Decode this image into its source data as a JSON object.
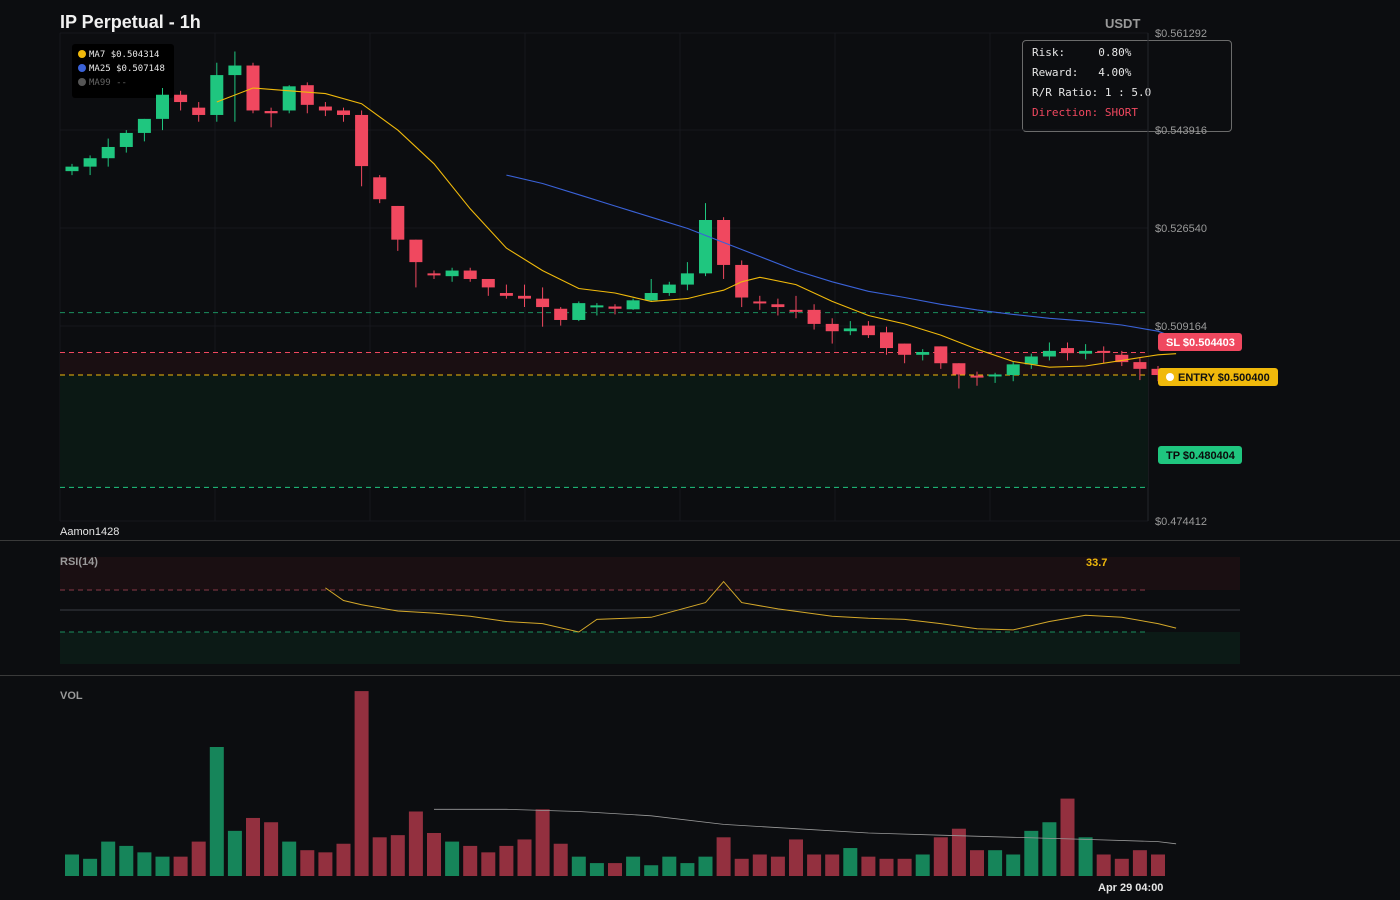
{
  "header": {
    "title": "IP Perpetual - 1h",
    "currency": "USDT"
  },
  "legend": [
    {
      "name": "MA7",
      "value": "$0.504314",
      "color": "#f0b90b"
    },
    {
      "name": "MA25",
      "value": "$0.507148",
      "color": "#3a62d8"
    },
    {
      "name": "MA99",
      "value": "--",
      "color": "#555555"
    }
  ],
  "trade_info": {
    "risk_label": "Risk:",
    "risk_value": "0.80%",
    "reward_label": "Reward:",
    "reward_value": "4.00%",
    "ratio_label": "R/R Ratio:",
    "ratio_value": "1 : 5.0",
    "direction_label": "Direction:",
    "direction_value": "SHORT"
  },
  "watermark": "Aamon1428",
  "rsi": {
    "label": "RSI(14)",
    "value": "33.7"
  },
  "volume": {
    "label": "VOL"
  },
  "footer": {
    "date": "Apr 29 04:00"
  },
  "colors": {
    "up": "#1fc67f",
    "down": "#f0485f",
    "ma7": "#f0b90b",
    "ma25": "#3a62d8",
    "entry": "#f0b90b",
    "sl": "#f0485f",
    "tp": "#1fc67f"
  },
  "chart_data": {
    "type": "candlestick",
    "title": "IP Perpetual - 1h",
    "y_axis_labels": [
      "$0.561292",
      "$0.543916",
      "$0.526540",
      "$0.509164",
      "$0.474412"
    ],
    "ylim": [
      0.474412,
      0.561292
    ],
    "levels": [
      {
        "label": "SL $0.504403",
        "value": 0.504403,
        "color": "#f0485f"
      },
      {
        "label": "ENTRY $0.500400",
        "value": 0.5004,
        "color": "#f0b90b"
      },
      {
        "label": "TP $0.480404",
        "value": 0.480404,
        "color": "#1fc67f"
      }
    ],
    "extra_dashed_level": 0.5115,
    "candles": [
      [
        0.5367,
        0.5375,
        0.536,
        0.538
      ],
      [
        0.5375,
        0.539,
        0.536,
        0.5395
      ],
      [
        0.539,
        0.541,
        0.5375,
        0.5425
      ],
      [
        0.541,
        0.5435,
        0.54,
        0.544
      ],
      [
        0.5435,
        0.546,
        0.542,
        0.546
      ],
      [
        0.546,
        0.5503,
        0.544,
        0.5515
      ],
      [
        0.5503,
        0.549,
        0.5475,
        0.551
      ],
      [
        0.548,
        0.5467,
        0.5455,
        0.549
      ],
      [
        0.5467,
        0.5538,
        0.5455,
        0.556
      ],
      [
        0.5538,
        0.5555,
        0.5455,
        0.558
      ],
      [
        0.5555,
        0.5475,
        0.547,
        0.556
      ],
      [
        0.5474,
        0.547,
        0.5445,
        0.548
      ],
      [
        0.5475,
        0.5518,
        0.547,
        0.552
      ],
      [
        0.552,
        0.5485,
        0.547,
        0.5525
      ],
      [
        0.5482,
        0.5475,
        0.5465,
        0.549
      ],
      [
        0.5475,
        0.5467,
        0.5455,
        0.548
      ],
      [
        0.5467,
        0.5376,
        0.534,
        0.5475
      ],
      [
        0.5356,
        0.5317,
        0.531,
        0.536
      ],
      [
        0.5305,
        0.5245,
        0.5225,
        0.5305
      ],
      [
        0.5245,
        0.5205,
        0.516,
        0.5245
      ],
      [
        0.5185,
        0.5182,
        0.5175,
        0.519
      ],
      [
        0.518,
        0.519,
        0.517,
        0.5195
      ],
      [
        0.519,
        0.5175,
        0.517,
        0.5195
      ],
      [
        0.5175,
        0.516,
        0.5145,
        0.5175
      ],
      [
        0.515,
        0.5145,
        0.514,
        0.5165
      ],
      [
        0.5145,
        0.514,
        0.5125,
        0.5165
      ],
      [
        0.514,
        0.5125,
        0.509,
        0.516
      ],
      [
        0.5122,
        0.5102,
        0.5092,
        0.5125
      ],
      [
        0.5102,
        0.5132,
        0.51,
        0.5135
      ],
      [
        0.5125,
        0.5128,
        0.511,
        0.5132
      ],
      [
        0.5126,
        0.5122,
        0.5112,
        0.513
      ],
      [
        0.5121,
        0.5137,
        0.512,
        0.514
      ],
      [
        0.5137,
        0.515,
        0.5136,
        0.5175
      ],
      [
        0.515,
        0.5165,
        0.5145,
        0.517
      ],
      [
        0.5165,
        0.5185,
        0.5155,
        0.5205
      ],
      [
        0.5185,
        0.528,
        0.518,
        0.531
      ],
      [
        0.528,
        0.52,
        0.5175,
        0.5285
      ],
      [
        0.52,
        0.5142,
        0.5125,
        0.5208
      ],
      [
        0.5135,
        0.5132,
        0.512,
        0.5145
      ],
      [
        0.513,
        0.5125,
        0.511,
        0.514
      ],
      [
        0.512,
        0.5118,
        0.5105,
        0.5145
      ],
      [
        0.512,
        0.5095,
        0.5085,
        0.513
      ],
      [
        0.5095,
        0.5082,
        0.506,
        0.5105
      ],
      [
        0.5082,
        0.5087,
        0.5075,
        0.51
      ],
      [
        0.5092,
        0.5075,
        0.507,
        0.51
      ],
      [
        0.508,
        0.5052,
        0.504,
        0.509
      ],
      [
        0.506,
        0.504,
        0.5025,
        0.506
      ],
      [
        0.504,
        0.5045,
        0.503,
        0.505
      ],
      [
        0.5055,
        0.5025,
        0.5015,
        0.5055
      ],
      [
        0.5025,
        0.5005,
        0.498,
        0.5025
      ],
      [
        0.5003,
        0.5002,
        0.4985,
        0.501
      ],
      [
        0.5003,
        0.5005,
        0.499,
        0.5008
      ],
      [
        0.5004,
        0.5023,
        0.4993,
        0.5028
      ],
      [
        0.5023,
        0.5037,
        0.5015,
        0.5042
      ],
      [
        0.5037,
        0.5047,
        0.503,
        0.5062
      ],
      [
        0.5052,
        0.5043,
        0.503,
        0.5062
      ],
      [
        0.5042,
        0.5047,
        0.5032,
        0.5059
      ],
      [
        0.5047,
        0.5045,
        0.5025,
        0.5055
      ],
      [
        0.504,
        0.5027,
        0.502,
        0.5047
      ],
      [
        0.5027,
        0.5015,
        0.4995,
        0.5034
      ],
      [
        0.5015,
        0.5004,
        0.4993,
        0.502
      ]
    ],
    "ma7": [
      [
        8,
        0.549
      ],
      [
        10,
        0.5515
      ],
      [
        12,
        0.551
      ],
      [
        14,
        0.5505
      ],
      [
        16,
        0.5487
      ],
      [
        18,
        0.544
      ],
      [
        20,
        0.538
      ],
      [
        22,
        0.53
      ],
      [
        24,
        0.523
      ],
      [
        26,
        0.519
      ],
      [
        28,
        0.5158
      ],
      [
        30,
        0.515
      ],
      [
        32,
        0.5135
      ],
      [
        34,
        0.514
      ],
      [
        35,
        0.5148
      ],
      [
        36,
        0.5155
      ],
      [
        37,
        0.517
      ],
      [
        38,
        0.5178
      ],
      [
        40,
        0.5165
      ],
      [
        42,
        0.5135
      ],
      [
        44,
        0.511
      ],
      [
        46,
        0.5095
      ],
      [
        48,
        0.5075
      ],
      [
        50,
        0.505
      ],
      [
        52,
        0.5028
      ],
      [
        54,
        0.5018
      ],
      [
        56,
        0.502
      ],
      [
        58,
        0.503
      ],
      [
        60,
        0.504
      ],
      [
        61,
        0.5042
      ]
    ],
    "ma25": [
      [
        24,
        0.536
      ],
      [
        26,
        0.5345
      ],
      [
        28,
        0.5325
      ],
      [
        30,
        0.5305
      ],
      [
        32,
        0.5285
      ],
      [
        34,
        0.5265
      ],
      [
        36,
        0.524
      ],
      [
        38,
        0.5215
      ],
      [
        40,
        0.519
      ],
      [
        42,
        0.517
      ],
      [
        44,
        0.5153
      ],
      [
        46,
        0.5142
      ],
      [
        48,
        0.513
      ],
      [
        50,
        0.512
      ],
      [
        52,
        0.5112
      ],
      [
        54,
        0.5105
      ],
      [
        56,
        0.51
      ],
      [
        58,
        0.5093
      ],
      [
        60,
        0.5082
      ],
      [
        61,
        0.507
      ]
    ],
    "rsi": [
      [
        14,
        72
      ],
      [
        15,
        60
      ],
      [
        16,
        56
      ],
      [
        18,
        50
      ],
      [
        20,
        48
      ],
      [
        22,
        45
      ],
      [
        24,
        40
      ],
      [
        26,
        38
      ],
      [
        28,
        30
      ],
      [
        29,
        42
      ],
      [
        32,
        44
      ],
      [
        35,
        58
      ],
      [
        36,
        78
      ],
      [
        37,
        58
      ],
      [
        39,
        52
      ],
      [
        42,
        45
      ],
      [
        44,
        43
      ],
      [
        46,
        42
      ],
      [
        48,
        38
      ],
      [
        50,
        33
      ],
      [
        52,
        32
      ],
      [
        54,
        40
      ],
      [
        56,
        46
      ],
      [
        58,
        44
      ],
      [
        60,
        38
      ],
      [
        61,
        33.7
      ]
    ],
    "rsi_range": [
      0,
      100
    ],
    "volume": [
      1.0,
      0.8,
      1.6,
      1.4,
      1.1,
      0.9,
      0.9,
      1.6,
      6.0,
      2.1,
      2.7,
      2.5,
      1.6,
      1.2,
      1.1,
      1.5,
      8.6,
      1.8,
      1.9,
      3.0,
      2.0,
      1.6,
      1.4,
      1.1,
      1.4,
      1.7,
      3.1,
      1.5,
      0.9,
      0.6,
      0.6,
      0.9,
      0.5,
      0.9,
      0.6,
      0.9,
      1.8,
      0.8,
      1.0,
      0.9,
      1.7,
      1.0,
      1.0,
      1.3,
      0.9,
      0.8,
      0.8,
      1.0,
      1.8,
      2.2,
      1.2,
      1.2,
      1.0,
      2.1,
      2.5,
      3.6,
      1.8,
      1.0,
      0.8,
      1.2,
      1.0
    ],
    "volume_ma": [
      [
        20,
        3.1
      ],
      [
        24,
        3.1
      ],
      [
        28,
        3.0
      ],
      [
        32,
        2.8
      ],
      [
        36,
        2.4
      ],
      [
        40,
        2.2
      ],
      [
        44,
        2.0
      ],
      [
        48,
        1.9
      ],
      [
        52,
        1.8
      ],
      [
        56,
        1.7
      ],
      [
        60,
        1.6
      ],
      [
        61,
        1.5
      ]
    ]
  }
}
